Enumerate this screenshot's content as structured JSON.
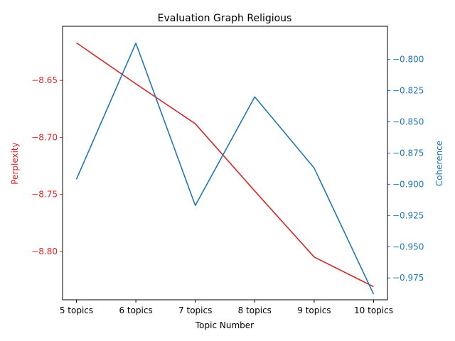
{
  "chart_data": {
    "type": "line",
    "title": "Evaluation Graph Religious",
    "xlabel": "Topic Number",
    "categories": [
      "5 topics",
      "6 topics",
      "7 topics",
      "8 topics",
      "9 topics",
      "10 topics"
    ],
    "left_axis": {
      "label": "Perplexity",
      "color": "#d62728",
      "ylim": [
        -8.8425,
        -8.6025
      ],
      "ticks": [
        -8.8,
        -8.75,
        -8.7,
        -8.65
      ],
      "tick_labels": [
        "−8.80",
        "−8.75",
        "−8.70",
        "−8.65"
      ]
    },
    "right_axis": {
      "label": "Coherence",
      "color": "#1f77b4",
      "ylim": [
        -0.9925,
        -0.7735
      ],
      "ticks": [
        -0.975,
        -0.95,
        -0.925,
        -0.9,
        -0.875,
        -0.85,
        -0.825,
        -0.8
      ],
      "tick_labels": [
        "−0.975",
        "−0.950",
        "−0.925",
        "−0.900",
        "−0.875",
        "−0.850",
        "−0.825",
        "−0.800"
      ]
    },
    "series": [
      {
        "axis": "left",
        "color": "#d62728",
        "values": [
          -8.617,
          -8.653,
          -8.688,
          -8.747,
          -8.805,
          -8.831
        ]
      },
      {
        "axis": "right",
        "color": "#1f77b4",
        "values": [
          -0.896,
          -0.787,
          -0.917,
          -0.83,
          -0.887,
          -0.988
        ]
      }
    ],
    "grid": false,
    "legend": "none"
  }
}
